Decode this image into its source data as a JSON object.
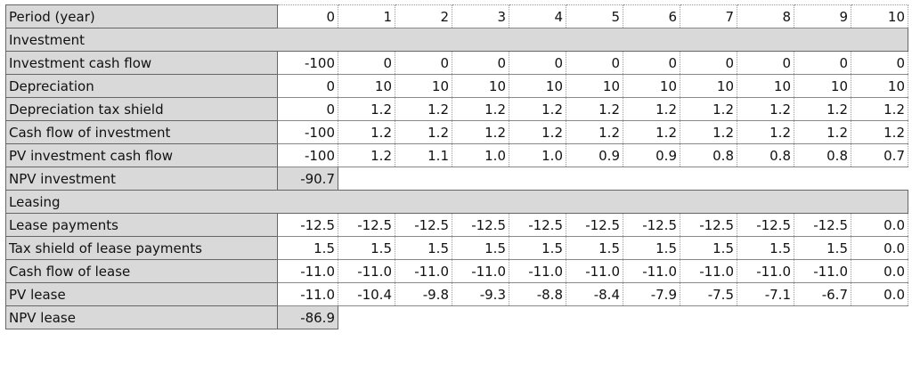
{
  "table": {
    "header": {
      "label": "Period (year)",
      "periods": [
        "0",
        "1",
        "2",
        "3",
        "4",
        "5",
        "6",
        "7",
        "8",
        "9",
        "10"
      ]
    },
    "sections": [
      {
        "title": "Investment",
        "rows": [
          {
            "label": "Investment cash flow",
            "values": [
              "-100",
              "0",
              "0",
              "0",
              "0",
              "0",
              "0",
              "0",
              "0",
              "0",
              "0"
            ]
          },
          {
            "label": "Depreciation",
            "values": [
              "0",
              "10",
              "10",
              "10",
              "10",
              "10",
              "10",
              "10",
              "10",
              "10",
              "10"
            ]
          },
          {
            "label": "Depreciation tax shield",
            "values": [
              "0",
              "1.2",
              "1.2",
              "1.2",
              "1.2",
              "1.2",
              "1.2",
              "1.2",
              "1.2",
              "1.2",
              "1.2"
            ]
          },
          {
            "label": "Cash flow of investment",
            "values": [
              "-100",
              "1.2",
              "1.2",
              "1.2",
              "1.2",
              "1.2",
              "1.2",
              "1.2",
              "1.2",
              "1.2",
              "1.2"
            ]
          },
          {
            "label": "PV investment cash flow",
            "values": [
              "-100",
              "1.2",
              "1.1",
              "1.0",
              "1.0",
              "0.9",
              "0.9",
              "0.8",
              "0.8",
              "0.8",
              "0.7"
            ]
          }
        ],
        "npv": {
          "label": "NPV investment",
          "value": "-90.7"
        }
      },
      {
        "title": "Leasing",
        "rows": [
          {
            "label": "Lease payments",
            "values": [
              "-12.5",
              "-12.5",
              "-12.5",
              "-12.5",
              "-12.5",
              "-12.5",
              "-12.5",
              "-12.5",
              "-12.5",
              "-12.5",
              "0.0"
            ]
          },
          {
            "label": "Tax shield of lease payments",
            "values": [
              "1.5",
              "1.5",
              "1.5",
              "1.5",
              "1.5",
              "1.5",
              "1.5",
              "1.5",
              "1.5",
              "1.5",
              "0.0"
            ]
          },
          {
            "label": "Cash flow of lease",
            "values": [
              "-11.0",
              "-11.0",
              "-11.0",
              "-11.0",
              "-11.0",
              "-11.0",
              "-11.0",
              "-11.0",
              "-11.0",
              "-11.0",
              "0.0"
            ]
          },
          {
            "label": "PV lease",
            "values": [
              "-11.0",
              "-10.4",
              "-9.8",
              "-9.3",
              "-8.8",
              "-8.4",
              "-7.9",
              "-7.5",
              "-7.1",
              "-6.7",
              "0.0"
            ]
          }
        ],
        "npv": {
          "label": "NPV lease",
          "value": "-86.9"
        }
      }
    ]
  }
}
